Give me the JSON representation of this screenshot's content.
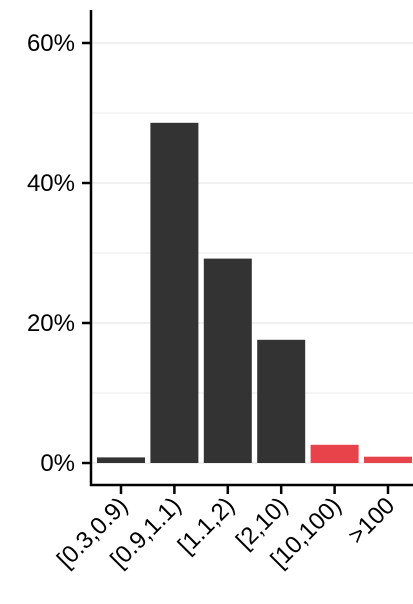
{
  "chart_data": {
    "type": "bar",
    "categories": [
      "[0.3,0.9)",
      "[0.9,1.1)",
      "[1.1,2)",
      "[2,10)",
      "[10,100)",
      ">100"
    ],
    "values": [
      0.8,
      48.6,
      29.2,
      17.6,
      2.6,
      0.9
    ],
    "bar_colors": [
      "#333333",
      "#333333",
      "#333333",
      "#333333",
      "#e8424a",
      "#e8424a"
    ],
    "title": "",
    "xlabel": "",
    "ylabel": "",
    "ylim": [
      0,
      65
    ],
    "yticks": [
      0,
      20,
      40,
      60
    ],
    "ytick_labels": [
      "0%",
      "20%",
      "40%",
      "60%"
    ],
    "grid": true,
    "legend": "none",
    "colors": {
      "bar_default": "#333333",
      "bar_highlight": "#e8424a",
      "grid": "#ebebeb",
      "axis": "#000000"
    }
  }
}
